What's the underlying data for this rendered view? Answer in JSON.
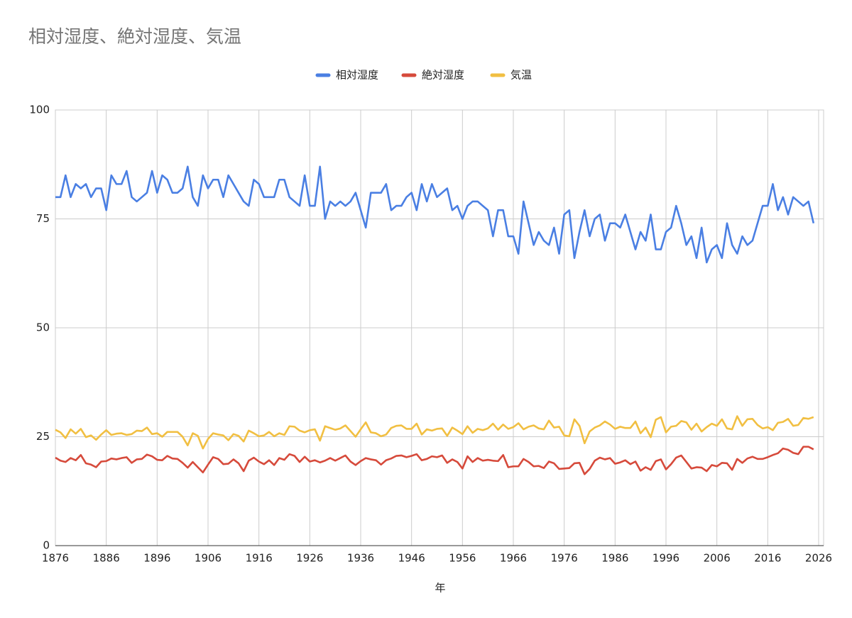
{
  "chart_data": {
    "type": "line",
    "title": "相対湿度、絶対湿度、気温",
    "xlabel": "年",
    "x": [
      1876,
      1877,
      1878,
      1879,
      1880,
      1881,
      1882,
      1883,
      1884,
      1885,
      1886,
      1887,
      1888,
      1889,
      1890,
      1891,
      1892,
      1893,
      1894,
      1895,
      1896,
      1897,
      1898,
      1899,
      1900,
      1901,
      1902,
      1903,
      1904,
      1905,
      1906,
      1907,
      1908,
      1909,
      1910,
      1911,
      1912,
      1913,
      1914,
      1915,
      1916,
      1917,
      1918,
      1919,
      1920,
      1921,
      1922,
      1923,
      1924,
      1925,
      1926,
      1927,
      1928,
      1929,
      1930,
      1931,
      1932,
      1933,
      1934,
      1935,
      1936,
      1937,
      1938,
      1939,
      1940,
      1941,
      1942,
      1943,
      1944,
      1945,
      1946,
      1947,
      1948,
      1949,
      1950,
      1951,
      1952,
      1953,
      1954,
      1955,
      1956,
      1957,
      1958,
      1959,
      1960,
      1961,
      1962,
      1963,
      1964,
      1965,
      1966,
      1967,
      1968,
      1969,
      1970,
      1971,
      1972,
      1973,
      1974,
      1975,
      1976,
      1977,
      1978,
      1979,
      1980,
      1981,
      1982,
      1983,
      1984,
      1985,
      1986,
      1987,
      1988,
      1989,
      1990,
      1991,
      1992,
      1993,
      1994,
      1995,
      1996,
      1997,
      1998,
      1999,
      2000,
      2001,
      2002,
      2003,
      2004,
      2005,
      2006,
      2007,
      2008,
      2009,
      2010,
      2011,
      2012,
      2013,
      2014,
      2015,
      2016,
      2017,
      2018,
      2019,
      2020,
      2021,
      2022,
      2023,
      2024,
      2025
    ],
    "series": [
      {
        "name": "相対湿度",
        "color": "#4a7fe3",
        "values": [
          80,
          80,
          85,
          80,
          83,
          82,
          83,
          80,
          82,
          82,
          77,
          85,
          83,
          83,
          86,
          80,
          79,
          80,
          81,
          86,
          81,
          85,
          84,
          81,
          81,
          82,
          87,
          80,
          78,
          85,
          82,
          84,
          84,
          80,
          85,
          83,
          81,
          79,
          78,
          84,
          83,
          80,
          80,
          80,
          84,
          84,
          80,
          79,
          78,
          85,
          78,
          78,
          87,
          75,
          79,
          78,
          79,
          78,
          79,
          81,
          77,
          73,
          81,
          81,
          81,
          83,
          77,
          78,
          78,
          80,
          81,
          77,
          83,
          79,
          83,
          80,
          81,
          82,
          77,
          78,
          75,
          78,
          79,
          79,
          78,
          77,
          71,
          77,
          77,
          71,
          71,
          67,
          79,
          74,
          69,
          72,
          70,
          69,
          73,
          67,
          76,
          77,
          66,
          72,
          77,
          71,
          75,
          76,
          70,
          74,
          74,
          73,
          76,
          72,
          68,
          72,
          70,
          76,
          68,
          68,
          72,
          73,
          78,
          74,
          69,
          71,
          66,
          73,
          65,
          68,
          69,
          66,
          74,
          69,
          67,
          71,
          69,
          70,
          74,
          78,
          78,
          83,
          77,
          80,
          76,
          80,
          79,
          78,
          79,
          74
        ]
      },
      {
        "name": "絶対湿度",
        "color": "#d64a3b",
        "values": [
          20.2,
          19.5,
          19.2,
          20.1,
          19.6,
          20.8,
          18.9,
          18.6,
          18.0,
          19.3,
          19.4,
          20.0,
          19.8,
          20.1,
          20.3,
          19.0,
          19.8,
          19.9,
          20.9,
          20.5,
          19.7,
          19.6,
          20.6,
          20.0,
          19.9,
          19.0,
          17.9,
          19.2,
          18.0,
          16.8,
          18.6,
          20.3,
          19.9,
          18.7,
          18.8,
          19.8,
          18.9,
          17.1,
          19.5,
          20.2,
          19.3,
          18.7,
          19.6,
          18.5,
          20.1,
          19.7,
          21.0,
          20.6,
          19.2,
          20.4,
          19.3,
          19.6,
          19.1,
          19.5,
          20.1,
          19.5,
          20.1,
          20.7,
          19.3,
          18.5,
          19.4,
          20.1,
          19.8,
          19.6,
          18.6,
          19.6,
          20.0,
          20.6,
          20.7,
          20.3,
          20.6,
          21.0,
          19.6,
          19.9,
          20.5,
          20.3,
          20.7,
          19.0,
          19.8,
          19.2,
          17.7,
          20.5,
          19.2,
          20.1,
          19.5,
          19.7,
          19.5,
          19.4,
          20.8,
          18.0,
          18.2,
          18.2,
          19.9,
          19.2,
          18.2,
          18.3,
          17.8,
          19.3,
          18.9,
          17.6,
          17.7,
          17.8,
          18.9,
          19.0,
          16.4,
          17.6,
          19.5,
          20.2,
          19.8,
          20.1,
          18.8,
          19.1,
          19.6,
          18.7,
          19.3,
          17.2,
          18.0,
          17.4,
          19.4,
          19.8,
          17.5,
          18.7,
          20.2,
          20.7,
          19.2,
          17.7,
          18.0,
          17.9,
          17.1,
          18.5,
          18.2,
          19.0,
          18.9,
          17.4,
          19.9,
          19.0,
          20.0,
          20.4,
          19.9,
          19.9,
          20.3,
          20.8,
          21.2,
          22.3,
          22.0,
          21.3,
          21.0,
          22.7,
          22.7,
          22.1
        ]
      },
      {
        "name": "気温",
        "color": "#f1bf42",
        "values": [
          26.6,
          26.0,
          24.7,
          26.7,
          25.7,
          26.8,
          24.9,
          25.3,
          24.3,
          25.5,
          26.5,
          25.4,
          25.7,
          25.8,
          25.4,
          25.6,
          26.4,
          26.3,
          27.1,
          25.6,
          25.8,
          25.0,
          26.1,
          26.1,
          26.1,
          25.0,
          23.0,
          25.8,
          25.2,
          22.3,
          24.5,
          25.8,
          25.5,
          25.3,
          24.2,
          25.6,
          25.2,
          23.9,
          26.4,
          25.8,
          25.1,
          25.3,
          26.1,
          25.1,
          25.8,
          25.4,
          27.4,
          27.3,
          26.4,
          26.0,
          26.5,
          26.7,
          24.1,
          27.4,
          27.0,
          26.6,
          26.9,
          27.6,
          26.3,
          25.0,
          26.7,
          28.3,
          26.0,
          25.8,
          25.1,
          25.5,
          27.0,
          27.5,
          27.6,
          26.8,
          26.8,
          28.0,
          25.5,
          26.7,
          26.4,
          26.8,
          26.9,
          25.2,
          27.1,
          26.4,
          25.6,
          27.4,
          25.9,
          26.8,
          26.5,
          26.9,
          28.0,
          26.6,
          27.8,
          26.8,
          27.2,
          28.1,
          26.7,
          27.3,
          27.6,
          26.9,
          26.7,
          28.7,
          27.1,
          27.3,
          25.3,
          25.1,
          29.0,
          27.5,
          23.5,
          26.2,
          27.1,
          27.6,
          28.5,
          27.8,
          26.8,
          27.3,
          27.0,
          27.0,
          28.5,
          25.8,
          27.1,
          24.9,
          28.9,
          29.5,
          26.0,
          27.3,
          27.5,
          28.6,
          28.3,
          26.6,
          28.0,
          26.2,
          27.2,
          28.0,
          27.5,
          29.0,
          26.9,
          26.7,
          29.7,
          27.5,
          29.0,
          29.1,
          27.7,
          26.9,
          27.2,
          26.5,
          28.2,
          28.4,
          29.1,
          27.5,
          27.7,
          29.3,
          29.1,
          29.5
        ]
      }
    ],
    "xlim": [
      1876,
      2026
    ],
    "xticks": [
      1876,
      1886,
      1896,
      1906,
      1916,
      1926,
      1936,
      1946,
      1956,
      1966,
      1976,
      1986,
      1996,
      2006,
      2016,
      2026
    ],
    "ylim": [
      0,
      100
    ],
    "yticks": [
      0,
      25,
      50,
      75,
      100
    ],
    "grid": true,
    "legend": "top"
  }
}
